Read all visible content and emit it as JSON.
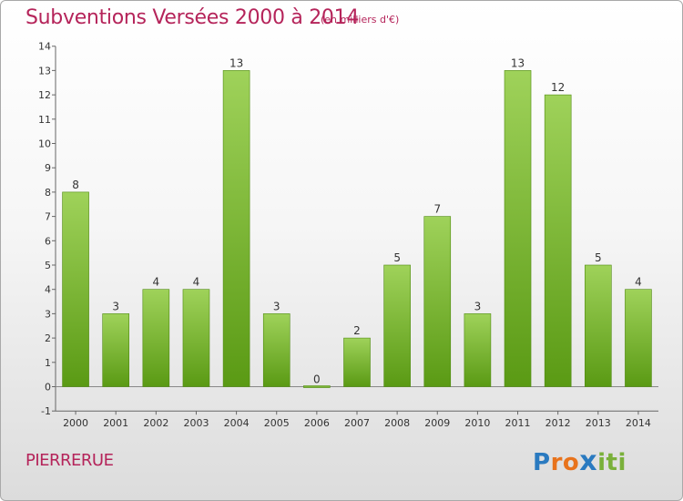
{
  "title": "Subventions Versées 2000 à 2014",
  "unit": "(en milliers d'€)",
  "commune": "PIERRERUE",
  "logo": {
    "text": "Proxiti",
    "letters": [
      "P",
      "r",
      "o",
      "x",
      "i",
      "t",
      "i"
    ],
    "colors": [
      "#2a7ac0",
      "#e8731c",
      "#e8731c",
      "#2a7ac0",
      "#7ab03a",
      "#7ab03a",
      "#7ab03a"
    ]
  },
  "colors": {
    "title": "#b5245a",
    "bar_top": "#9fd25a",
    "bar_bottom": "#5a9a14"
  },
  "chart_data": {
    "type": "bar",
    "title": "Subventions Versées 2000 à 2014",
    "categories": [
      "2000",
      "2001",
      "2002",
      "2003",
      "2004",
      "2005",
      "2006",
      "2007",
      "2008",
      "2009",
      "2010",
      "2011",
      "2012",
      "2013",
      "2014"
    ],
    "values": [
      8,
      3,
      4,
      4,
      13,
      3,
      0,
      2,
      5,
      7,
      3,
      13,
      12,
      5,
      4
    ],
    "ylim": [
      -1,
      14
    ],
    "yticks": [
      "-1",
      "0",
      "1",
      "2",
      "3",
      "4",
      "5",
      "6",
      "7",
      "8",
      "9",
      "10",
      "11",
      "12",
      "13",
      "14"
    ],
    "grid": false,
    "legend": "none"
  }
}
